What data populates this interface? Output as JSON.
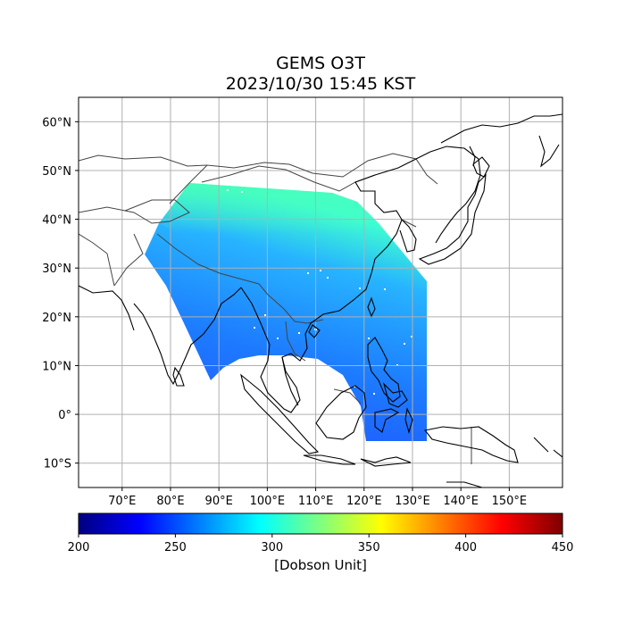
{
  "title": "GEMS O3T",
  "subtitle": "2023/10/30 15:45 KST",
  "map": {
    "lon_range": [
      61,
      161
    ],
    "lat_range": [
      -15,
      65
    ],
    "lon_ticks": [
      {
        "value": 70,
        "label": "70°E"
      },
      {
        "value": 80,
        "label": "80°E"
      },
      {
        "value": 90,
        "label": "90°E"
      },
      {
        "value": 100,
        "label": "100°E"
      },
      {
        "value": 110,
        "label": "110°E"
      },
      {
        "value": 120,
        "label": "120°E"
      },
      {
        "value": 130,
        "label": "130°E"
      },
      {
        "value": 140,
        "label": "140°E"
      },
      {
        "value": 150,
        "label": "150°E"
      }
    ],
    "lat_ticks": [
      {
        "value": 60,
        "label": "60°N"
      },
      {
        "value": 50,
        "label": "50°N"
      },
      {
        "value": 40,
        "label": "40°N"
      },
      {
        "value": 30,
        "label": "30°N"
      },
      {
        "value": 20,
        "label": "20°N"
      },
      {
        "value": 10,
        "label": "10°N"
      },
      {
        "value": 0,
        "label": "0°"
      },
      {
        "value": -10,
        "label": "10°S"
      }
    ],
    "grid": true,
    "colors": {
      "grid": "#b0b0b0",
      "coast": "#000000",
      "border": "#444444"
    }
  },
  "colorbar": {
    "min": 200,
    "max": 450,
    "ticks": [
      {
        "value": 200,
        "label": "200"
      },
      {
        "value": 250,
        "label": "250"
      },
      {
        "value": 300,
        "label": "300"
      },
      {
        "value": 350,
        "label": "350"
      },
      {
        "value": 400,
        "label": "400"
      },
      {
        "value": 450,
        "label": "450"
      }
    ],
    "label": "[Dobson Unit]",
    "stops": [
      "#00007f",
      "#0000ff",
      "#007fff",
      "#00ffff",
      "#7fff7f",
      "#ffff00",
      "#ff7f00",
      "#ff0000",
      "#7f0000"
    ]
  }
}
